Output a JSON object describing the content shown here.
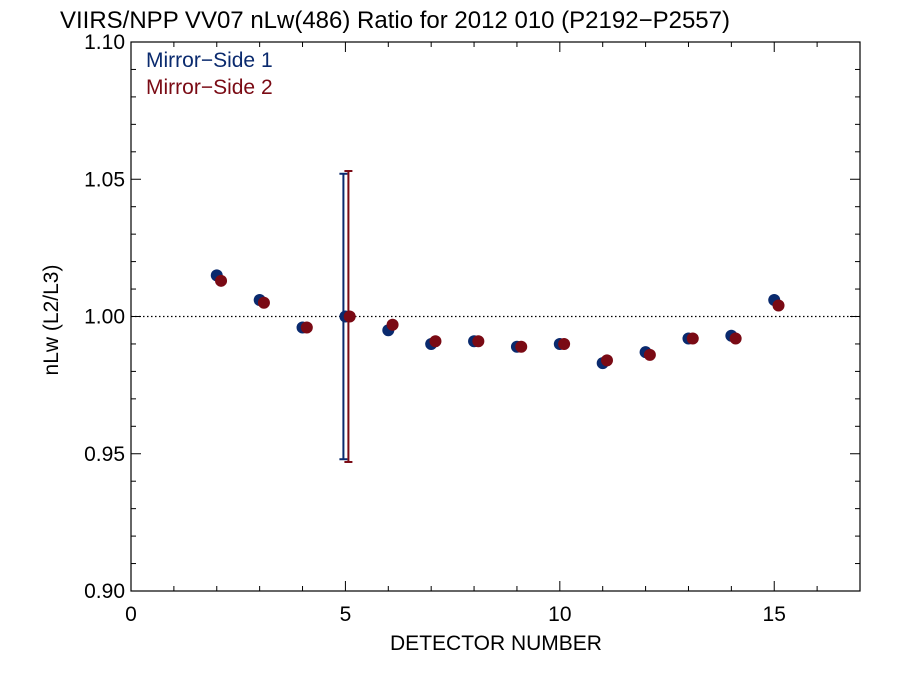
{
  "chart_data": {
    "type": "scatter",
    "title": "VIIRS/NPP VV07 nLw(486) Ratio for 2012 010 (P2192−P2557)",
    "xlabel": "DETECTOR NUMBER",
    "ylabel": "nLw (L2/L3)",
    "xlim": [
      0,
      17
    ],
    "ylim": [
      0.9,
      1.1
    ],
    "x_ticks": [
      0,
      5,
      10,
      15
    ],
    "x_tick_labels": [
      "0",
      "5",
      "10",
      "15"
    ],
    "y_ticks": [
      0.9,
      0.95,
      1.0,
      1.05,
      1.1
    ],
    "y_tick_labels": [
      "0.90",
      "0.95",
      "1.00",
      "1.05",
      "1.10"
    ],
    "reference_line": 1.0,
    "grid": false,
    "legend_position": "top-left",
    "series": [
      {
        "name": "Mirror−Side 1",
        "color": "#0a2a6e",
        "x": [
          2,
          3,
          4,
          5,
          6,
          7,
          8,
          9,
          10,
          11,
          12,
          13,
          14,
          15
        ],
        "y": [
          1.015,
          1.006,
          0.996,
          1.0,
          0.995,
          0.99,
          0.991,
          0.989,
          0.99,
          0.983,
          0.987,
          0.992,
          0.993,
          1.006
        ],
        "error_bar": {
          "x": 5,
          "low": 0.948,
          "high": 1.052
        }
      },
      {
        "name": "Mirror−Side 2",
        "color": "#7a0a14",
        "x": [
          2,
          3,
          4,
          5,
          6,
          7,
          8,
          9,
          10,
          11,
          12,
          13,
          14,
          15
        ],
        "y": [
          1.013,
          1.005,
          0.996,
          1.0,
          0.997,
          0.991,
          0.991,
          0.989,
          0.99,
          0.984,
          0.986,
          0.992,
          0.992,
          1.004
        ],
        "error_bar": {
          "x": 5,
          "low": 0.947,
          "high": 1.053
        }
      }
    ]
  }
}
